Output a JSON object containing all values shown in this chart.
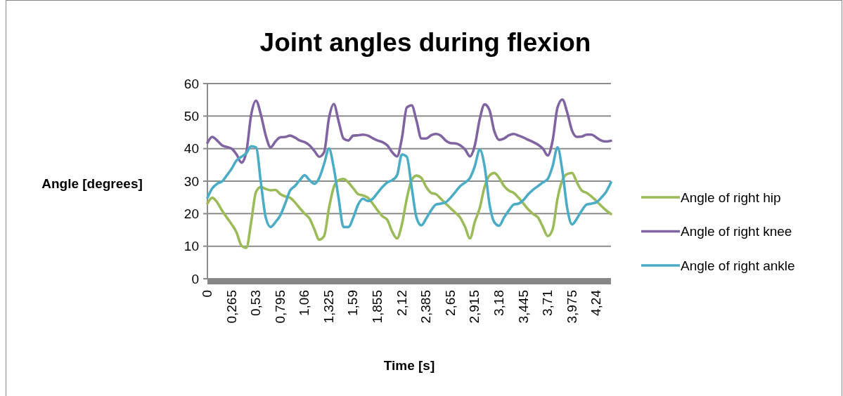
{
  "chart_data": {
    "type": "line",
    "title": "Joint angles during flexion",
    "xlabel": "Time [s]",
    "ylabel": "Angle [degrees]",
    "categories": [
      "0",
      null,
      null,
      null,
      null,
      "0,265",
      null,
      null,
      null,
      null,
      "0,53",
      null,
      null,
      null,
      null,
      "0,795",
      null,
      null,
      null,
      null,
      "1,06",
      null,
      null,
      null,
      null,
      "1,325",
      null,
      null,
      null,
      null,
      "1,59",
      null,
      null,
      null,
      null,
      "1,855",
      null,
      null,
      null,
      null,
      "2,12",
      null,
      null,
      null,
      null,
      "2,385",
      null,
      null,
      null,
      null,
      "2,65",
      null,
      null,
      null,
      null,
      "2,915",
      null,
      null,
      null,
      null,
      "3,18",
      null,
      null,
      null,
      null,
      "3,445",
      null,
      null,
      null,
      null,
      "3,71",
      null,
      null,
      null,
      null,
      "3,975",
      null,
      null,
      null,
      null,
      "4,24",
      null,
      null,
      null
    ],
    "ylim": [
      0,
      60
    ],
    "yticks": [
      0,
      10,
      20,
      30,
      40,
      50,
      60
    ],
    "grid": "y",
    "legend": "right",
    "marker": "none",
    "series": [
      {
        "name": "Angle of right hip",
        "color": "#9bbb59",
        "values": [
          23.1,
          24.9,
          23.5,
          21,
          18.8,
          16.7,
          14.2,
          10.2,
          9.5,
          17.4,
          26.7,
          28.2,
          27.6,
          27.2,
          27.3,
          26,
          25.3,
          24.9,
          23.5,
          21.7,
          20,
          18.5,
          15.2,
          12,
          13.1,
          21.7,
          28.2,
          30.3,
          30.7,
          29.6,
          27.8,
          26,
          25.6,
          24.9,
          23.1,
          21,
          19.2,
          18.1,
          14.5,
          12.4,
          16.7,
          24.6,
          30.3,
          31.7,
          31,
          28.2,
          26.4,
          26,
          24.6,
          23.1,
          21.7,
          20.3,
          18.8,
          15.9,
          12.4,
          17.5,
          21.7,
          28.2,
          31.7,
          32.5,
          31,
          28.5,
          27.1,
          26.4,
          24.9,
          23.1,
          21.3,
          19.9,
          18.8,
          15.9,
          13.1,
          15.2,
          24.6,
          30.3,
          32.2,
          32.5,
          29.6,
          27.1,
          26.4,
          25.3,
          23.9,
          22.4,
          21,
          19.9
        ]
      },
      {
        "name": "Angle of right knee",
        "color": "#8064a2",
        "values": [
          41.8,
          43.6,
          42.5,
          41,
          40.5,
          40,
          38.2,
          35.7,
          38.9,
          50.4,
          54.7,
          50.4,
          44,
          40.4,
          42.2,
          43.5,
          43.6,
          44,
          43.4,
          42.5,
          42,
          41,
          39.3,
          37.5,
          38.9,
          49.4,
          53.7,
          48.3,
          43.1,
          42.5,
          44,
          44.1,
          44.3,
          44,
          43.2,
          42.5,
          42,
          41,
          38.9,
          37.6,
          43.2,
          52.6,
          53.3,
          48.6,
          43.1,
          43.1,
          44.1,
          44.5,
          44,
          42.5,
          41.7,
          41.6,
          41,
          39.7,
          37.6,
          41,
          49,
          53.6,
          51.9,
          45.4,
          42.7,
          43.1,
          44.1,
          44.5,
          44,
          43.4,
          42.7,
          42,
          41.2,
          40,
          37.9,
          42.5,
          52.6,
          55.1,
          51.1,
          45.5,
          43.6,
          43.7,
          44.3,
          44.3,
          43.4,
          42.5,
          42.2,
          42.4
        ]
      },
      {
        "name": "Angle of right ankle",
        "color": "#4bacc6",
        "values": [
          24.9,
          27.8,
          29.2,
          29.9,
          31.8,
          33.9,
          36.4,
          37.5,
          38.6,
          40.7,
          40.4,
          29.5,
          18.8,
          15.9,
          17.4,
          19.5,
          23.1,
          27.1,
          28.5,
          30.3,
          31.8,
          30.3,
          29.2,
          31,
          35.3,
          40,
          34,
          24.6,
          15.9,
          15.9,
          18.8,
          22.8,
          24.6,
          23.9,
          24.6,
          26.4,
          28.2,
          29.6,
          30.3,
          31.8,
          38.2,
          37.5,
          28.2,
          18.8,
          16.4,
          18.5,
          21,
          22.8,
          23.1,
          23.5,
          24.9,
          26.7,
          28.5,
          29.6,
          31,
          34.6,
          39.7,
          34.6,
          23.1,
          17.4,
          16.3,
          18.8,
          21,
          22.8,
          23.1,
          24.2,
          26,
          27.4,
          28.5,
          29.6,
          30.7,
          34.6,
          40.4,
          33.2,
          21.7,
          16.7,
          18.5,
          21,
          22.8,
          23.1,
          23.5,
          24.9,
          26.7,
          29.6
        ]
      }
    ]
  }
}
